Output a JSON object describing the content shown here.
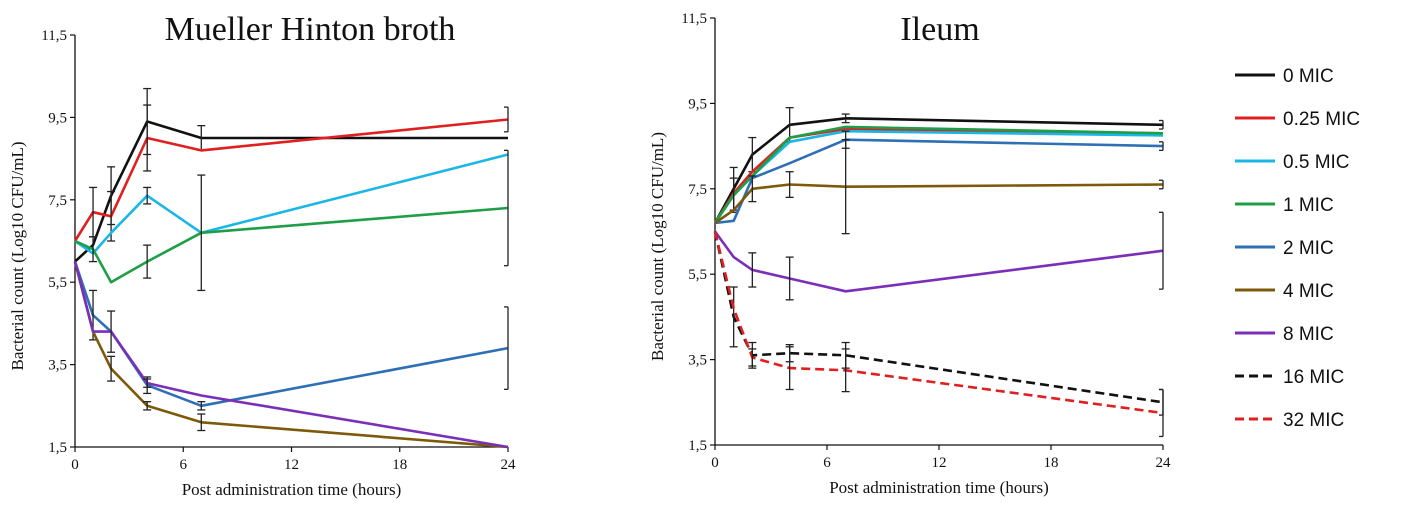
{
  "chart_data": [
    {
      "type": "line",
      "title": "Mueller  Hinton broth",
      "xlabel": "Post administration time (hours)",
      "ylabel": "Bacterial count (Log10 CFU/mL)",
      "xlim": [
        0,
        24
      ],
      "ylim": [
        1.5,
        11.5
      ],
      "xticks": [
        0,
        6,
        12,
        18,
        24
      ],
      "xtick_labels": [
        "0",
        "6",
        "12",
        "18",
        "24"
      ],
      "yticks": [
        1.5,
        3.5,
        5.5,
        7.5,
        9.5,
        11.5
      ],
      "ytick_labels": [
        "1,5",
        "3,5",
        "5,5",
        "7,5",
        "9,5",
        "11,5"
      ],
      "grid": false,
      "series": [
        {
          "name": "0 MIC",
          "color": "#111111",
          "dash": false,
          "x": [
            0,
            1,
            2,
            4,
            7,
            24
          ],
          "y": [
            6.0,
            6.4,
            7.6,
            9.4,
            9.0,
            9.0
          ],
          "err": [
            0,
            0,
            0.7,
            0.8,
            0.3,
            0
          ]
        },
        {
          "name": "0.25 MIC",
          "color": "#e02020",
          "dash": false,
          "x": [
            0,
            1,
            2,
            4,
            7,
            24
          ],
          "y": [
            6.5,
            7.2,
            7.1,
            9.0,
            8.7,
            9.45
          ],
          "err": [
            0,
            0.6,
            0.6,
            0.8,
            0,
            0.3
          ]
        },
        {
          "name": "0.5 MIC",
          "color": "#19b6e6",
          "dash": false,
          "x": [
            0,
            1,
            2,
            4,
            7,
            24
          ],
          "y": [
            6.5,
            6.2,
            6.7,
            7.6,
            6.7,
            8.6
          ],
          "err": [
            0,
            0,
            0,
            0.2,
            0,
            0
          ]
        },
        {
          "name": "1 MIC",
          "color": "#1f9e48",
          "dash": false,
          "x": [
            0,
            1,
            2,
            4,
            7,
            24
          ],
          "y": [
            6.5,
            6.3,
            5.5,
            6.0,
            6.7,
            7.3
          ],
          "err": [
            0,
            0.3,
            0,
            0.4,
            1.4,
            1.4
          ]
        },
        {
          "name": "2 MIC",
          "color": "#2e6fb5",
          "dash": false,
          "x": [
            0,
            1,
            2,
            4,
            7,
            24
          ],
          "y": [
            6.0,
            4.7,
            4.3,
            3.0,
            2.5,
            3.9
          ],
          "err": [
            0,
            0.6,
            0,
            0.2,
            0.1,
            1.0
          ]
        },
        {
          "name": "4 MIC",
          "color": "#7d5a0a",
          "dash": false,
          "x": [
            0,
            1,
            2,
            4,
            7,
            24
          ],
          "y": [
            6.0,
            4.3,
            3.4,
            2.5,
            2.1,
            1.5
          ],
          "err": [
            0,
            0,
            0.3,
            0.1,
            0.2,
            0
          ]
        },
        {
          "name": "8 MIC",
          "color": "#7a2fb8",
          "dash": false,
          "x": [
            0,
            1,
            2,
            4,
            7,
            24
          ],
          "y": [
            6.0,
            4.3,
            4.3,
            3.05,
            2.75,
            1.5
          ],
          "err": [
            0,
            0,
            0.5,
            0.1,
            0,
            0
          ]
        }
      ]
    },
    {
      "type": "line",
      "title": "Ileum",
      "xlabel": "Post administration time (hours)",
      "ylabel": "Bacterial count (Log10 CFU/mL)",
      "xlim": [
        0,
        24
      ],
      "ylim": [
        1.5,
        11.5
      ],
      "xticks": [
        0,
        6,
        12,
        18,
        24
      ],
      "xtick_labels": [
        "0",
        "6",
        "12",
        "18",
        "24"
      ],
      "yticks": [
        1.5,
        3.5,
        5.5,
        7.5,
        9.5,
        11.5
      ],
      "ytick_labels": [
        "1,5",
        "3,5",
        "5,5",
        "7,5",
        "9,5",
        "11,5"
      ],
      "grid": false,
      "series": [
        {
          "name": "0 MIC",
          "color": "#111111",
          "dash": false,
          "x": [
            0,
            1,
            2,
            4,
            7,
            24
          ],
          "y": [
            6.7,
            7.5,
            8.3,
            9.0,
            9.15,
            9.0
          ],
          "err": [
            0,
            0.5,
            0.4,
            0.4,
            0.1,
            0.1
          ]
        },
        {
          "name": "0.25 MIC",
          "color": "#e02020",
          "dash": false,
          "x": [
            0,
            1,
            2,
            4,
            7,
            24
          ],
          "y": [
            6.7,
            7.4,
            7.9,
            8.7,
            8.9,
            8.8
          ],
          "err": [
            0,
            0,
            0,
            0,
            0,
            0
          ]
        },
        {
          "name": "0.5 MIC",
          "color": "#19b6e6",
          "dash": false,
          "x": [
            0,
            1,
            2,
            4,
            7,
            24
          ],
          "y": [
            6.7,
            7.35,
            7.8,
            8.6,
            8.85,
            8.75
          ],
          "err": [
            0,
            0,
            0,
            0,
            0,
            0
          ]
        },
        {
          "name": "1 MIC",
          "color": "#1f9e48",
          "dash": false,
          "x": [
            0,
            1,
            2,
            4,
            7,
            24
          ],
          "y": [
            6.7,
            7.35,
            7.8,
            8.7,
            8.95,
            8.8
          ],
          "err": [
            0,
            0.4,
            0,
            0,
            0,
            0
          ]
        },
        {
          "name": "2 MIC",
          "color": "#2e6fb5",
          "dash": false,
          "x": [
            0,
            1,
            2,
            4,
            7,
            24
          ],
          "y": [
            6.7,
            6.75,
            7.75,
            8.1,
            8.65,
            8.5
          ],
          "err": [
            0,
            0,
            0,
            0,
            0.2,
            0.1
          ]
        },
        {
          "name": "4 MIC",
          "color": "#7d5a0a",
          "dash": false,
          "x": [
            0,
            1,
            2,
            4,
            7,
            24
          ],
          "y": [
            6.7,
            7.0,
            7.5,
            7.6,
            7.55,
            7.6
          ],
          "err": [
            0,
            0,
            0.3,
            0.3,
            1.1,
            0.1
          ]
        },
        {
          "name": "8 MIC",
          "color": "#7a2fb8",
          "dash": false,
          "x": [
            0,
            1,
            2,
            4,
            7,
            24
          ],
          "y": [
            6.5,
            5.9,
            5.6,
            5.4,
            5.1,
            6.05
          ],
          "err": [
            0,
            0,
            0.4,
            0.5,
            0,
            0.9
          ]
        },
        {
          "name": "16 MIC",
          "color": "#111111",
          "dash": true,
          "x": [
            0,
            1,
            2,
            4,
            7,
            24
          ],
          "y": [
            6.5,
            4.5,
            3.6,
            3.65,
            3.6,
            2.5
          ],
          "err": [
            0,
            0.7,
            0.3,
            0.2,
            0.3,
            0.3
          ]
        },
        {
          "name": "32 MIC",
          "color": "#e02020",
          "dash": true,
          "x": [
            0,
            1,
            2,
            4,
            7,
            24
          ],
          "y": [
            6.5,
            4.7,
            3.55,
            3.3,
            3.25,
            2.25
          ],
          "err": [
            0,
            0,
            0.2,
            0.5,
            0.5,
            0.55
          ]
        }
      ]
    }
  ],
  "legend": {
    "placement": "right",
    "items": [
      {
        "label": "0 MIC",
        "color": "#111111",
        "dash": false
      },
      {
        "label": "0.25 MIC",
        "color": "#e02020",
        "dash": false
      },
      {
        "label": "0.5 MIC",
        "color": "#19b6e6",
        "dash": false
      },
      {
        "label": "1 MIC",
        "color": "#1f9e48",
        "dash": false
      },
      {
        "label": "2 MIC",
        "color": "#2e6fb5",
        "dash": false
      },
      {
        "label": "4 MIC",
        "color": "#7d5a0a",
        "dash": false
      },
      {
        "label": "8 MIC",
        "color": "#7a2fb8",
        "dash": false
      },
      {
        "label": "16 MIC",
        "color": "#111111",
        "dash": true
      },
      {
        "label": "32 MIC",
        "color": "#e02020",
        "dash": true
      }
    ]
  }
}
